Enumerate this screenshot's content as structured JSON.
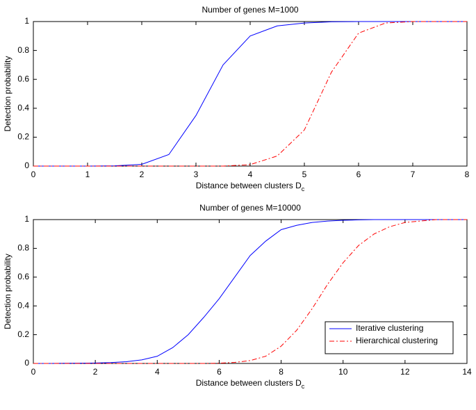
{
  "chart_data": [
    {
      "type": "line",
      "title": "Number of genes M=1000",
      "xlabel": "Distance between clusters D",
      "xlabel_subscript": "c",
      "ylabel": "Detection probability",
      "x": [
        0,
        0.5,
        1,
        1.5,
        2,
        2.5,
        3,
        3.5,
        4,
        4.5,
        5,
        5.5,
        6,
        6.5,
        7,
        7.5,
        8
      ],
      "series": [
        {
          "color": "#0000ff",
          "dash": "solid",
          "values": [
            0,
            0,
            0,
            0.002,
            0.012,
            0.08,
            0.35,
            0.7,
            0.9,
            0.97,
            0.99,
            0.998,
            1,
            1,
            1,
            1,
            1
          ]
        },
        {
          "color": "#ff0000",
          "dash": "dashdot",
          "values": [
            0,
            0,
            0,
            0,
            0,
            0,
            0,
            0,
            0.01,
            0.07,
            0.25,
            0.65,
            0.92,
            0.99,
            1,
            1,
            1
          ]
        }
      ],
      "xlim": [
        0,
        8
      ],
      "xticks": [
        0,
        1,
        2,
        3,
        4,
        5,
        6,
        7,
        8
      ],
      "ylim": [
        0,
        1
      ],
      "yticks": [
        0,
        0.2,
        0.4,
        0.6,
        0.8,
        1
      ],
      "grid": false
    },
    {
      "type": "line",
      "title": "Number of genes M=10000",
      "xlabel": "Distance between clusters D",
      "xlabel_subscript": "c",
      "ylabel": "Detection probability",
      "x": [
        0,
        0.5,
        1,
        1.5,
        2,
        2.5,
        3,
        3.5,
        4,
        4.5,
        5,
        5.5,
        6,
        6.5,
        7,
        7.5,
        8,
        8.5,
        9,
        9.5,
        10,
        10.5,
        11,
        11.5,
        12,
        12.5,
        13,
        13.5,
        14
      ],
      "series": [
        {
          "name": "Iterative clustering",
          "color": "#0000ff",
          "dash": "solid",
          "values": [
            0,
            0,
            0.001,
            0.002,
            0.003,
            0.006,
            0.012,
            0.025,
            0.05,
            0.11,
            0.2,
            0.32,
            0.45,
            0.6,
            0.75,
            0.85,
            0.93,
            0.96,
            0.98,
            0.99,
            0.995,
            0.998,
            1,
            1,
            1,
            1,
            1,
            1,
            1
          ]
        },
        {
          "name": "Hierarchical clustering",
          "color": "#ff0000",
          "dash": "dashdot",
          "values": [
            0,
            0,
            0,
            0,
            0,
            0,
            0,
            0,
            0,
            0,
            0,
            0,
            0.002,
            0.007,
            0.02,
            0.05,
            0.12,
            0.23,
            0.38,
            0.55,
            0.7,
            0.82,
            0.9,
            0.95,
            0.98,
            0.99,
            1,
            1,
            1
          ]
        }
      ],
      "xlim": [
        0,
        14
      ],
      "xticks": [
        0,
        2,
        4,
        6,
        8,
        10,
        12,
        14
      ],
      "ylim": [
        0,
        1
      ],
      "yticks": [
        0,
        0.2,
        0.4,
        0.6,
        0.8,
        1
      ],
      "grid": false,
      "legend": "lower right"
    }
  ]
}
